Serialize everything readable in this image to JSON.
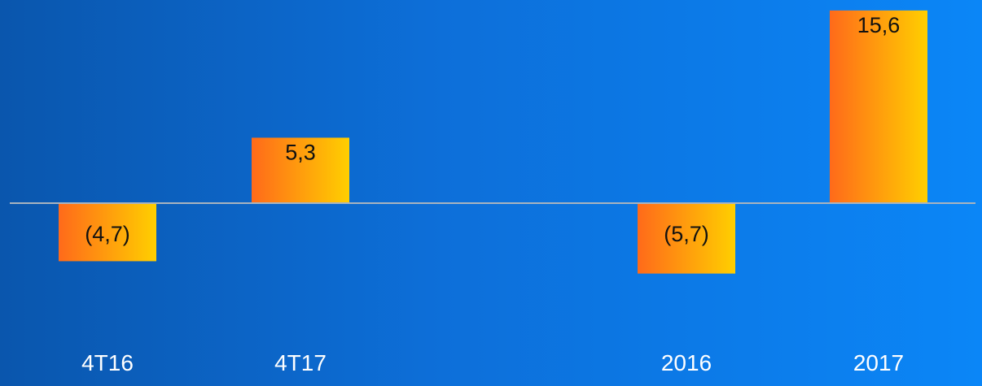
{
  "chart_data": {
    "type": "bar",
    "categories": [
      "4T16",
      "4T17",
      "2016",
      "2017"
    ],
    "values": [
      -4.7,
      5.3,
      -5.7,
      15.6
    ],
    "value_labels": [
      "(4,7)",
      "5,3",
      "(5,7)",
      "15,6"
    ],
    "title": "",
    "xlabel": "",
    "ylabel": "",
    "grid": false,
    "legend": "none",
    "colors": {
      "bar_gradient_start": "#ff6a1a",
      "bar_gradient_end": "#ffcf00",
      "baseline": "#a9b4bf",
      "category_text": "#ffffff",
      "label_text": "#111111"
    }
  }
}
